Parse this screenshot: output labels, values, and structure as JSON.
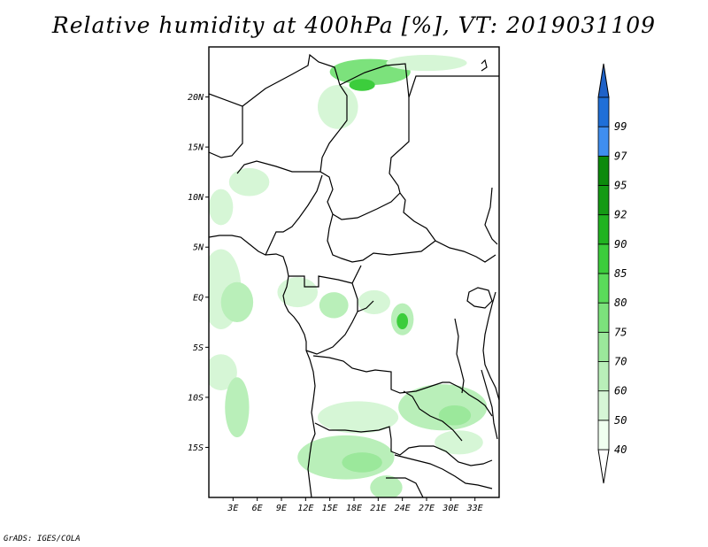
{
  "title": "Relative humidity at 400hPa [%], VT: 2019031109",
  "credit": "GrADS: IGES/COLA",
  "map": {
    "lon_range": [
      0,
      36
    ],
    "lat_range": [
      -20,
      25
    ],
    "lat_ticks": [
      {
        "lat": 20,
        "label": "20N"
      },
      {
        "lat": 15,
        "label": "15N"
      },
      {
        "lat": 10,
        "label": "10N"
      },
      {
        "lat": 5,
        "label": "5N"
      },
      {
        "lat": 0,
        "label": "EQ"
      },
      {
        "lat": -5,
        "label": "5S"
      },
      {
        "lat": -10,
        "label": "10S"
      },
      {
        "lat": -15,
        "label": "15S"
      }
    ],
    "lon_ticks": [
      {
        "lon": 3,
        "label": "3E"
      },
      {
        "lon": 6,
        "label": "6E"
      },
      {
        "lon": 9,
        "label": "9E"
      },
      {
        "lon": 12,
        "label": "12E"
      },
      {
        "lon": 15,
        "label": "15E"
      },
      {
        "lon": 18,
        "label": "18E"
      },
      {
        "lon": 21,
        "label": "21E"
      },
      {
        "lon": 24,
        "label": "24E"
      },
      {
        "lon": 27,
        "label": "27E"
      },
      {
        "lon": 30,
        "label": "30E"
      },
      {
        "lon": 33,
        "label": "33E"
      }
    ],
    "humidity_blobs": [
      {
        "lon": 20,
        "lat": 22.5,
        "rx": 5,
        "ry": 1.3,
        "level": 75
      },
      {
        "lon": 19,
        "lat": 21.2,
        "rx": 1.6,
        "ry": 0.6,
        "level": 85
      },
      {
        "lon": 16,
        "lat": 19,
        "rx": 2.5,
        "ry": 2.2,
        "level": 50
      },
      {
        "lon": 27,
        "lat": 23.4,
        "rx": 5,
        "ry": 0.8,
        "level": 50
      },
      {
        "lon": 5,
        "lat": 11.5,
        "rx": 2.5,
        "ry": 1.4,
        "level": 50
      },
      {
        "lon": 1.5,
        "lat": 9,
        "rx": 1.5,
        "ry": 1.8,
        "level": 50
      },
      {
        "lon": 1.5,
        "lat": 0.8,
        "rx": 2.5,
        "ry": 4,
        "level": 50
      },
      {
        "lon": 3.5,
        "lat": -0.5,
        "rx": 2,
        "ry": 2,
        "level": 60
      },
      {
        "lon": 11,
        "lat": 0.5,
        "rx": 2.5,
        "ry": 1.5,
        "level": 50
      },
      {
        "lon": 15.5,
        "lat": -0.8,
        "rx": 1.8,
        "ry": 1.3,
        "level": 60
      },
      {
        "lon": 20.5,
        "lat": -0.5,
        "rx": 2,
        "ry": 1.2,
        "level": 50
      },
      {
        "lon": 24,
        "lat": -2.2,
        "rx": 1.4,
        "ry": 1.6,
        "level": 60
      },
      {
        "lon": 24,
        "lat": -2.4,
        "rx": 0.7,
        "ry": 0.8,
        "level": 85
      },
      {
        "lon": 1.5,
        "lat": -7.5,
        "rx": 2,
        "ry": 1.8,
        "level": 50
      },
      {
        "lon": 3.5,
        "lat": -11,
        "rx": 1.5,
        "ry": 3,
        "level": 60
      },
      {
        "lon": 18.5,
        "lat": -12,
        "rx": 5,
        "ry": 1.6,
        "level": 50
      },
      {
        "lon": 29,
        "lat": -11,
        "rx": 5.5,
        "ry": 2.3,
        "level": 60
      },
      {
        "lon": 30.5,
        "lat": -11.8,
        "rx": 2,
        "ry": 1,
        "level": 70
      },
      {
        "lon": 17,
        "lat": -16,
        "rx": 6,
        "ry": 2.2,
        "level": 60
      },
      {
        "lon": 19,
        "lat": -16.5,
        "rx": 2.5,
        "ry": 1,
        "level": 70
      },
      {
        "lon": 22,
        "lat": -19,
        "rx": 2,
        "ry": 1.2,
        "level": 60
      },
      {
        "lon": 31,
        "lat": -14.5,
        "rx": 3,
        "ry": 1.2,
        "level": 50
      }
    ]
  },
  "colorbar": {
    "levels": [
      {
        "label": "40",
        "color": "#f0fff0"
      },
      {
        "label": "50",
        "color": "#d6f6d6"
      },
      {
        "label": "60",
        "color": "#b9efb9"
      },
      {
        "label": "70",
        "color": "#9be89b"
      },
      {
        "label": "75",
        "color": "#7ce27c"
      },
      {
        "label": "80",
        "color": "#5adb5a"
      },
      {
        "label": "85",
        "color": "#3ccd3c"
      },
      {
        "label": "90",
        "color": "#21b321"
      },
      {
        "label": "92",
        "color": "#149a14"
      },
      {
        "label": "95",
        "color": "#0c8a0c"
      },
      {
        "label": "97",
        "color": "#3f8ef0"
      },
      {
        "label": "99",
        "color": "#1f6fd8"
      }
    ],
    "top_color": "#1f62c8",
    "bottom_color": "#ffffff"
  }
}
